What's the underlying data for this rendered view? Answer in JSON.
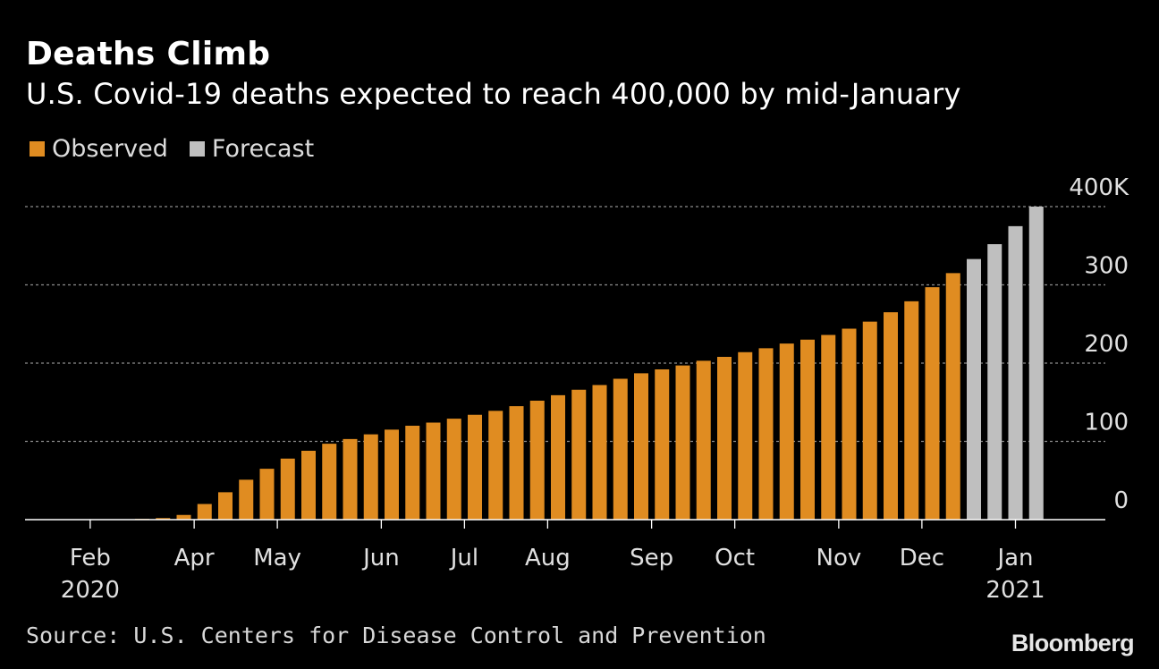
{
  "header": {
    "title": "Deaths Climb",
    "subtitle": "U.S. Covid-19 deaths expected to reach 400,000 by mid-January"
  },
  "legend": {
    "observed_label": "Observed",
    "forecast_label": "Forecast"
  },
  "footer": {
    "source": "Source: U.S. Centers for Disease Control and Prevention",
    "brand": "Bloomberg"
  },
  "colors": {
    "background": "#000000",
    "observed": "#e08c21",
    "forecast": "#bfbfbf",
    "grid": "#8c8c8c",
    "text": "#ffffff"
  },
  "chart_data": {
    "type": "bar",
    "title": "Deaths Climb",
    "subtitle": "U.S. Covid-19 deaths expected to reach 400,000 by mid-January",
    "xlabel": "",
    "ylabel": "",
    "ylim": [
      0,
      400
    ],
    "yticks": [
      {
        "value": 0,
        "label": "0"
      },
      {
        "value": 100,
        "label": "100"
      },
      {
        "value": 200,
        "label": "200"
      },
      {
        "value": 300,
        "label": "300"
      },
      {
        "value": 400,
        "label": "400K"
      }
    ],
    "grid": true,
    "y_axis_position": "right",
    "legend_position": "top-left",
    "xtick_labels": [
      {
        "bar_index": 1.5,
        "label": "Feb",
        "year": "2020"
      },
      {
        "bar_index": 6.5,
        "label": "Apr"
      },
      {
        "bar_index": 10.5,
        "label": "May"
      },
      {
        "bar_index": 15.5,
        "label": "Jun"
      },
      {
        "bar_index": 19.5,
        "label": "Jul"
      },
      {
        "bar_index": 23.5,
        "label": "Aug"
      },
      {
        "bar_index": 28.5,
        "label": "Sep"
      },
      {
        "bar_index": 32.5,
        "label": "Oct"
      },
      {
        "bar_index": 37.5,
        "label": "Nov"
      },
      {
        "bar_index": 41.5,
        "label": "Dec"
      },
      {
        "bar_index": 46,
        "label": "Jan",
        "year": "2021"
      }
    ],
    "series": [
      {
        "name": "Observed",
        "values": [
          0.5,
          0.5,
          0.5,
          0.5,
          1,
          2,
          6,
          20,
          35,
          51,
          65,
          78,
          88,
          97,
          103,
          109,
          115,
          120,
          124,
          129,
          134,
          139,
          145,
          152,
          159,
          166,
          172,
          180,
          187,
          192,
          197,
          203,
          208,
          214,
          219,
          225,
          230,
          236,
          244,
          253,
          265,
          279,
          297,
          315
        ]
      },
      {
        "name": "Forecast",
        "values": [
          0,
          0,
          0,
          0,
          0,
          0,
          0,
          0,
          0,
          0,
          0,
          0,
          0,
          0,
          0,
          0,
          0,
          0,
          0,
          0,
          0,
          0,
          0,
          0,
          0,
          0,
          0,
          0,
          0,
          0,
          0,
          0,
          0,
          0,
          0,
          0,
          0,
          0,
          0,
          0,
          0,
          0,
          0,
          0,
          333,
          352,
          375,
          400
        ]
      }
    ]
  }
}
